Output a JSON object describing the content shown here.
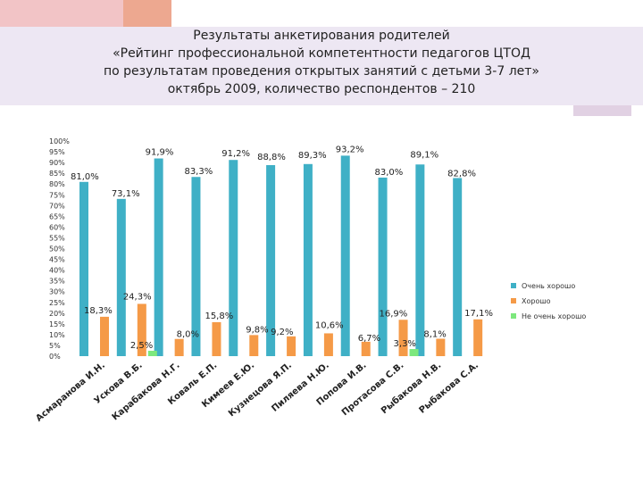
{
  "title_lines": [
    "Результаты анкетирования родителей",
    "«Рейтинг профессиональной компетентности педагогов ЦТОД",
    "по результатам проведения открытых занятий с детьми 3-7 лет»",
    "октябрь 2009, количество респондентов – 210"
  ],
  "colors": {
    "series": [
      "#3fb0c6",
      "#f59a47",
      "#7de87d"
    ],
    "title_band": "#ede7f3",
    "deco_pink": "#f2c4c6",
    "deco_salmon": "#eda890",
    "deco_lilac": "#d9c6dc"
  },
  "chart_data": {
    "type": "bar",
    "categories": [
      "Асмаранова И.Н.",
      "Ускова В.Б.",
      "Карабакова Н.Г.",
      "Коваль Е.П.",
      "Кимеев Е.Ю.",
      "Кузнецова Я.П.",
      "Пиляева Н.Ю.",
      "Попова И.В.",
      "Протасова С.В.",
      "Рыбакова Н.В.",
      "Рыбакова С.А."
    ],
    "series": [
      {
        "name": "Очень хорошо",
        "values": [
          81.0,
          73.1,
          91.9,
          83.3,
          91.2,
          88.8,
          89.3,
          93.2,
          83.0,
          89.1,
          82.8
        ]
      },
      {
        "name": "Хорошо",
        "values": [
          18.3,
          24.3,
          8.0,
          15.8,
          9.8,
          9.2,
          10.6,
          6.7,
          16.9,
          8.1,
          17.1
        ]
      },
      {
        "name": "Не очень хорошо",
        "values": [
          null,
          2.5,
          null,
          null,
          null,
          null,
          null,
          null,
          3.3,
          null,
          null
        ]
      }
    ],
    "data_labels": [
      [
        "81,0%",
        "73,1%",
        "91,9%",
        "83,3%",
        "91,2%",
        "88,8%",
        "89,3%",
        "93,2%",
        "83,0%",
        "89,1%",
        "82,8%"
      ],
      [
        "18,3%",
        "24,3%",
        "8,0%",
        "15,8%",
        "9,8%",
        "9,2%",
        "10,6%",
        "6,7%",
        "16,9%",
        "8,1%",
        "17,1%"
      ],
      [
        "",
        "2,5%",
        "",
        "",
        "",
        "",
        "",
        "",
        "3,3%",
        "",
        ""
      ]
    ],
    "y_ticks": [
      "0%",
      "5%",
      "10%",
      "15%",
      "20%",
      "25%",
      "30%",
      "35%",
      "40%",
      "45%",
      "50%",
      "55%",
      "60%",
      "65%",
      "70%",
      "75%",
      "80%",
      "85%",
      "90%",
      "95%",
      "100%"
    ],
    "ylim": [
      0,
      100
    ],
    "legend_position": "right",
    "grid": false
  }
}
